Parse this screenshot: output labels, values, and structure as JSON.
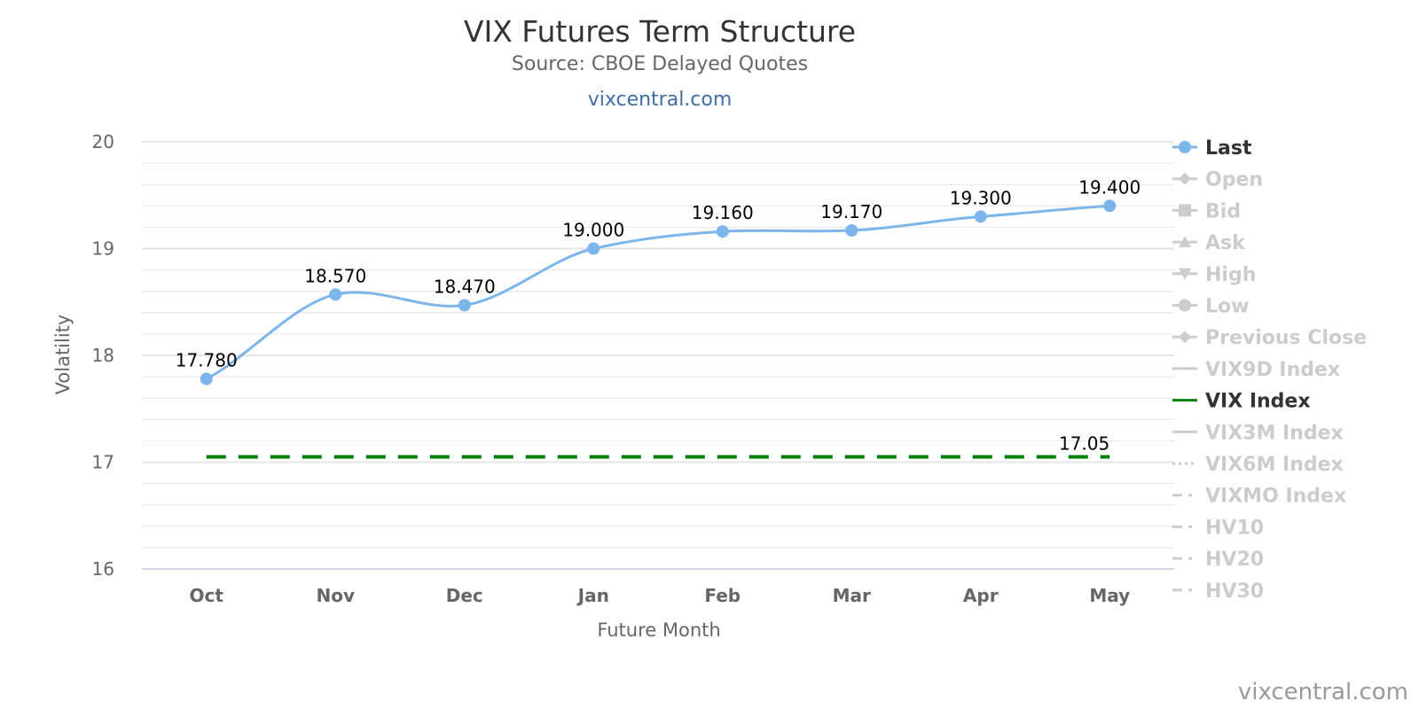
{
  "chart_data": {
    "type": "line",
    "title": "VIX Futures Term Structure",
    "subtitle": "Source: CBOE Delayed Quotes",
    "link": "vixcentral.com",
    "credit": "vixcentral.com",
    "xlabel": "Future Month",
    "ylabel": "Volatility",
    "categories": [
      "Oct",
      "Nov",
      "Dec",
      "Jan",
      "Feb",
      "Mar",
      "Apr",
      "May"
    ],
    "ylim": [
      16,
      20
    ],
    "yticks": [
      16,
      17,
      18,
      19,
      20
    ],
    "yticks_labels": [
      "16",
      "17",
      "18",
      "19",
      "20"
    ],
    "minor_grid_step": 0.2,
    "grid": true,
    "legend_position": "right",
    "series": [
      {
        "name": "Last",
        "values": [
          17.78,
          18.57,
          18.47,
          19.0,
          19.16,
          19.17,
          19.3,
          19.4
        ],
        "labels": [
          "17.780",
          "18.570",
          "18.470",
          "19.000",
          "19.160",
          "19.170",
          "19.300",
          "19.400"
        ],
        "color": "#7cb5ec",
        "style": "spline"
      },
      {
        "name": "VIX Index",
        "values": [
          17.05,
          17.05,
          17.05,
          17.05,
          17.05,
          17.05,
          17.05,
          17.05
        ],
        "end_label": "17.05",
        "color": "#008000",
        "style": "dashed"
      }
    ],
    "legend": [
      {
        "name": "Last",
        "visible": true,
        "symbol": "circle-line",
        "color": "#7cb5ec"
      },
      {
        "name": "Open",
        "visible": false,
        "symbol": "diamond"
      },
      {
        "name": "Bid",
        "visible": false,
        "symbol": "square"
      },
      {
        "name": "Ask",
        "visible": false,
        "symbol": "triangle-up"
      },
      {
        "name": "High",
        "visible": false,
        "symbol": "triangle-down"
      },
      {
        "name": "Low",
        "visible": false,
        "symbol": "circle"
      },
      {
        "name": "Previous Close",
        "visible": false,
        "symbol": "diamond"
      },
      {
        "name": "VIX9D Index",
        "visible": false,
        "symbol": "solid-line"
      },
      {
        "name": "VIX Index",
        "visible": true,
        "symbol": "solid-line",
        "color": "#008000"
      },
      {
        "name": "VIX3M Index",
        "visible": false,
        "symbol": "solid-line"
      },
      {
        "name": "VIX6M Index",
        "visible": false,
        "symbol": "dotted-line"
      },
      {
        "name": "VIXMO Index",
        "visible": false,
        "symbol": "dashdot-line"
      },
      {
        "name": "HV10",
        "visible": false,
        "symbol": "dashdot-line"
      },
      {
        "name": "HV20",
        "visible": false,
        "symbol": "dashdot-line"
      },
      {
        "name": "HV30",
        "visible": false,
        "symbol": "dashdot-line"
      }
    ],
    "colors": {
      "hidden_legend": "#cccccc",
      "visible_legend_text": "#333333",
      "grid": "#e6e6e6",
      "axis_line": "#ccd6eb"
    }
  }
}
